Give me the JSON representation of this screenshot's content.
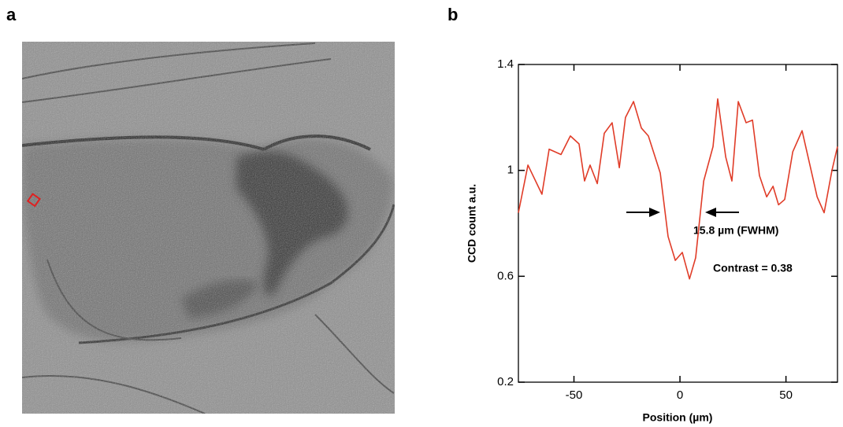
{
  "panel_labels": [
    "a",
    "b"
  ],
  "chart_data": {
    "type": "line",
    "xlabel": "Position (µm)",
    "ylabel": "CCD count a.u.",
    "annotations": [
      "15.8 µm (FWHM)",
      "Contrast = 0.38"
    ],
    "x": [
      -76.2,
      -71.7,
      -65.1,
      -61.7,
      -56.1,
      -51.7,
      -47.6,
      -45.0,
      -42.4,
      -39.0,
      -35.7,
      -32.0,
      -28.6,
      -25.7,
      -21.9,
      -18.2,
      -14.9,
      -9.3,
      -5.6,
      -2.2,
      1.1,
      4.5,
      7.4,
      11.2,
      15.6,
      17.8,
      21.6,
      24.5,
      27.5,
      31.2,
      34.2,
      37.5,
      40.9,
      43.9,
      46.5,
      49.4,
      53.2,
      57.6,
      61.3,
      64.7,
      68.0,
      71.7,
      74.3
    ],
    "values": [
      0.84,
      1.02,
      0.91,
      1.08,
      1.06,
      1.13,
      1.1,
      0.96,
      1.02,
      0.95,
      1.14,
      1.18,
      1.01,
      1.2,
      1.26,
      1.16,
      1.13,
      0.99,
      0.75,
      0.66,
      0.69,
      0.59,
      0.67,
      0.96,
      1.09,
      1.27,
      1.05,
      0.96,
      1.26,
      1.18,
      1.19,
      0.98,
      0.9,
      0.94,
      0.87,
      0.89,
      1.07,
      1.15,
      1.02,
      0.9,
      0.84,
      1.0,
      1.09
    ],
    "color": "#e03c28",
    "xlim": [
      -76.2,
      74.3
    ],
    "xticks": [
      -50,
      0,
      50
    ],
    "ylim": [
      0.2,
      1.4
    ],
    "yticks": [
      0.2,
      0.6,
      1,
      1.4
    ],
    "grid": false
  }
}
